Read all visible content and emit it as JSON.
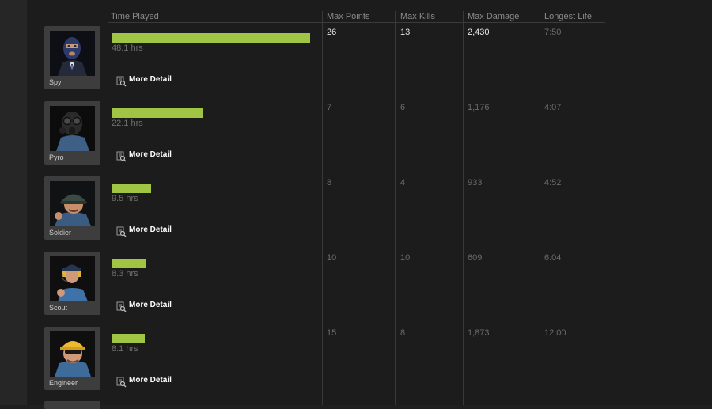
{
  "columns": {
    "time_played": "Time Played",
    "max_points": "Max Points",
    "max_kills": "Max Kills",
    "max_damage": "Max Damage",
    "longest_life": "Longest Life"
  },
  "more_detail_label": "More Detail",
  "colors": {
    "bar": "#a0c443",
    "panel": "#1c1c1c",
    "portrait_frame": "#3d3d3d"
  },
  "rows": [
    {
      "class": "Spy",
      "hours": "48.1 hrs",
      "hours_value": 48.1,
      "max_points": "26",
      "max_kills": "13",
      "max_damage": "2,430",
      "longest_life": "7:50",
      "icon": "spy-portrait"
    },
    {
      "class": "Pyro",
      "hours": "22.1 hrs",
      "hours_value": 22.1,
      "max_points": "7",
      "max_kills": "6",
      "max_damage": "1,176",
      "longest_life": "4:07",
      "icon": "pyro-portrait"
    },
    {
      "class": "Soldier",
      "hours": "9.5 hrs",
      "hours_value": 9.5,
      "max_points": "8",
      "max_kills": "4",
      "max_damage": "933",
      "longest_life": "4:52",
      "icon": "soldier-portrait"
    },
    {
      "class": "Scout",
      "hours": "8.3 hrs",
      "hours_value": 8.3,
      "max_points": "10",
      "max_kills": "10",
      "max_damage": "609",
      "longest_life": "6:04",
      "icon": "scout-portrait"
    },
    {
      "class": "Engineer",
      "hours": "8.1 hrs",
      "hours_value": 8.1,
      "max_points": "15",
      "max_kills": "8",
      "max_damage": "1,873",
      "longest_life": "12:00",
      "icon": "engineer-portrait"
    }
  ]
}
